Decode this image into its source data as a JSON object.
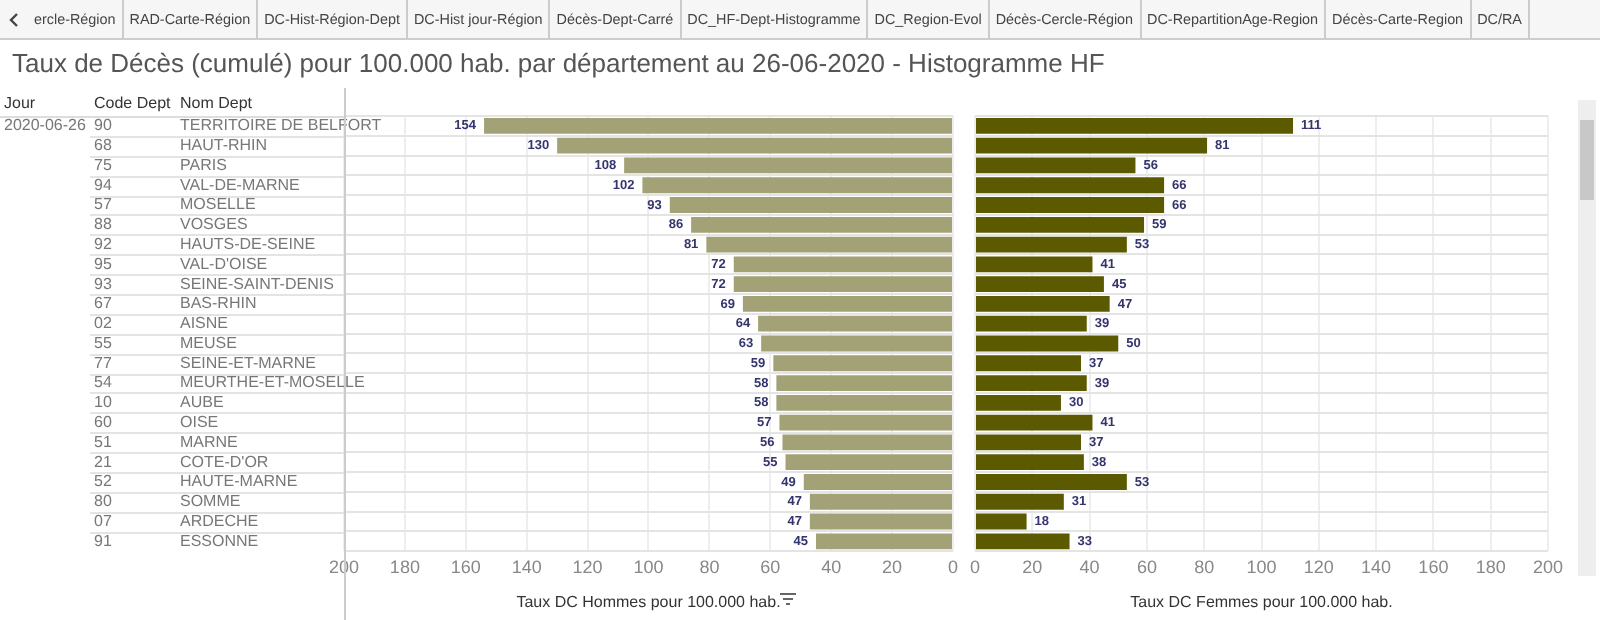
{
  "chart_data": [
    {
      "type": "bar",
      "orientation": "horizontal",
      "title": "Taux de Décès (cumulé) pour 100.000 hab. par département au 26-06-2020 - Histogramme HF",
      "ylabel": "Nom Dept",
      "xlabel": "Taux DC Hommes pour 100.000 hab.",
      "categories": [
        "TERRITOIRE DE BELFORT",
        "HAUT-RHIN",
        "PARIS",
        "VAL-DE-MARNE",
        "MOSELLE",
        "VOSGES",
        "HAUTS-DE-SEINE",
        "VAL-D'OISE",
        "SEINE-SAINT-DENIS",
        "BAS-RHIN",
        "AISNE",
        "MEUSE",
        "SEINE-ET-MARNE",
        "MEURTHE-ET-MOSELLE",
        "AUBE",
        "OISE",
        "MARNE",
        "COTE-D'OR",
        "HAUTE-MARNE",
        "SOMME",
        "ARDECHE",
        "ESSONNE"
      ],
      "values": [
        154,
        130,
        108,
        102,
        93,
        86,
        81,
        72,
        72,
        69,
        64,
        63,
        59,
        58,
        58,
        57,
        56,
        55,
        49,
        47,
        47,
        45
      ],
      "color": "#a3a276",
      "xlim": [
        200,
        0
      ],
      "xticks": [
        200,
        180,
        160,
        140,
        120,
        100,
        80,
        60,
        40,
        20,
        0
      ],
      "grid": true,
      "data_labels": true,
      "annotations": [
        "Jour",
        "Code Dept",
        "2020-06-26",
        "90",
        "68",
        "75",
        "94",
        "57",
        "88",
        "92",
        "95",
        "93",
        "67",
        "02",
        "55",
        "77",
        "54",
        "10",
        "60",
        "51",
        "21",
        "52",
        "80",
        "07",
        "91"
      ]
    },
    {
      "type": "bar",
      "orientation": "horizontal",
      "xlabel": "Taux DC Femmes pour 100.000 hab.",
      "categories": [
        null,
        null,
        null,
        null,
        null,
        null,
        null,
        null,
        null,
        null,
        null,
        null,
        null,
        null,
        null,
        null,
        null,
        null,
        null,
        null,
        null,
        null
      ],
      "values": [
        111,
        81,
        56,
        66,
        66,
        59,
        53,
        41,
        45,
        47,
        39,
        50,
        37,
        39,
        30,
        41,
        37,
        38,
        53,
        31,
        18,
        33
      ],
      "color": "#5b5a00",
      "xlim": [
        0,
        200
      ],
      "xticks": [
        0,
        20,
        40,
        60,
        80,
        100,
        120,
        140,
        160,
        180,
        200
      ],
      "grid": true,
      "data_labels": true,
      "tick_labels": "x",
      "annotations": [
        "ercle-Région",
        "RAD-Carte-Région",
        "DC-Hist-Région-Dept",
        "DC-Hist jour-Région",
        "Décès-Dept-Carré",
        "DC_HF-Dept-Histogramme",
        "DC_Region-Evol",
        "Décès-Cercle-Région",
        "DC-RepartitionAge-Region",
        "Décès-Carte-Region",
        "DC/RA"
      ]
    }
  ]
}
